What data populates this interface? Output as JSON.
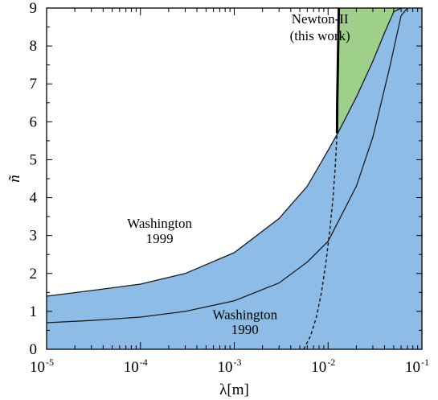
{
  "chart_data": {
    "type": "area",
    "x_scale": "log",
    "xlim": [
      1e-05,
      0.1
    ],
    "ylim": [
      0,
      9
    ],
    "xlabel": "λ[m]",
    "ylabel": "ñ",
    "grid": false,
    "x_ticks": [
      {
        "base": "10",
        "exp": "-5"
      },
      {
        "base": "10",
        "exp": "-4"
      },
      {
        "base": "10",
        "exp": "-3"
      },
      {
        "base": "10",
        "exp": "-2"
      },
      {
        "base": "10",
        "exp": "-1"
      }
    ],
    "x_tick_values": [
      1e-05,
      0.0001,
      0.001,
      0.01,
      0.1
    ],
    "y_ticks": [
      "0",
      "1",
      "2",
      "3",
      "4",
      "5",
      "6",
      "7",
      "8",
      "9"
    ],
    "y_tick_values": [
      0,
      1,
      2,
      3,
      4,
      5,
      6,
      7,
      8,
      9
    ],
    "colors": {
      "excluded_region": "#8dbde7",
      "newton_excluded_region": "#9fd08a",
      "curve": "#1a1a1a"
    },
    "series": [
      {
        "name": "Washington 1999",
        "style": "solid",
        "x": [
          1e-05,
          3e-05,
          0.0001,
          0.0003,
          0.001,
          0.003,
          0.006,
          0.01,
          0.013,
          0.02,
          0.03,
          0.04,
          0.05,
          0.06
        ],
        "y": [
          1.4,
          1.55,
          1.72,
          2.0,
          2.55,
          3.45,
          4.3,
          5.25,
          5.75,
          6.65,
          7.6,
          8.35,
          8.9,
          9.0
        ]
      },
      {
        "name": "Washington 1990",
        "style": "solid",
        "x": [
          1e-05,
          3e-05,
          0.0001,
          0.0003,
          0.001,
          0.003,
          0.006,
          0.01,
          0.02,
          0.03,
          0.045,
          0.06,
          0.07
        ],
        "y": [
          0.7,
          0.76,
          0.85,
          1.0,
          1.28,
          1.75,
          2.3,
          2.85,
          4.3,
          5.6,
          7.4,
          8.8,
          9.0
        ]
      },
      {
        "name": "Newton-II (this work)",
        "style": "solid",
        "x": [
          0.01247,
          0.0125,
          0.0128,
          0.013
        ],
        "y": [
          5.7,
          6.5,
          8.0,
          9.0
        ]
      },
      {
        "name": "",
        "style": "dashed",
        "x": [
          0.0055,
          0.0065,
          0.0075,
          0.0085,
          0.0095,
          0.0105,
          0.0113,
          0.0119,
          0.01247
        ],
        "y": [
          0.0,
          0.35,
          0.85,
          1.5,
          2.3,
          3.2,
          4.0,
          4.8,
          5.7
        ]
      }
    ],
    "regions": [
      {
        "name": "excluded",
        "bounded_by": "Washington 1999",
        "fill": "excluded_region"
      },
      {
        "name": "newton_excluded",
        "between": [
          "Newton-II (this work)",
          "Washington 1999"
        ],
        "fill": "newton_excluded_region"
      }
    ],
    "annotations": [
      {
        "text": "Newton-II",
        "x": 0.0082,
        "y": 8.6
      },
      {
        "text": "(this work)",
        "x": 0.0082,
        "y": 8.15
      },
      {
        "text": "Washington",
        "x": 0.00016,
        "y": 3.2
      },
      {
        "text": "1999",
        "x": 0.00016,
        "y": 2.8
      },
      {
        "text": "Washington",
        "x": 0.0013,
        "y": 0.8
      },
      {
        "text": "1990",
        "x": 0.0013,
        "y": 0.4
      }
    ]
  }
}
